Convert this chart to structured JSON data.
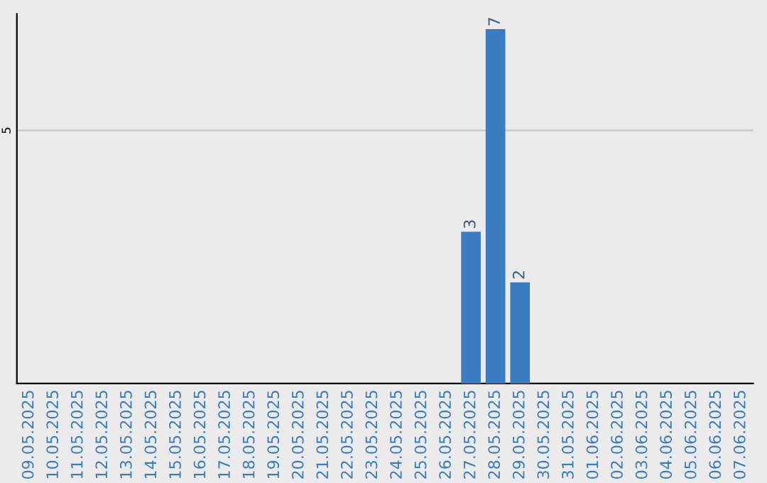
{
  "chart_data": {
    "type": "bar",
    "categories": [
      "09.05.2025",
      "10.05.2025",
      "11.05.2025",
      "12.05.2025",
      "13.05.2025",
      "14.05.2025",
      "15.05.2025",
      "16.05.2025",
      "17.05.2025",
      "18.05.2025",
      "19.05.2025",
      "20.05.2025",
      "21.05.2025",
      "22.05.2025",
      "23.05.2025",
      "24.05.2025",
      "25.05.2025",
      "26.05.2025",
      "27.05.2025",
      "28.05.2025",
      "29.05.2025",
      "30.05.2025",
      "31.05.2025",
      "01.06.2025",
      "02.06.2025",
      "03.06.2025",
      "04.06.2025",
      "05.06.2025",
      "06.06.2025",
      "07.06.2025"
    ],
    "values": [
      null,
      null,
      null,
      null,
      null,
      null,
      null,
      null,
      null,
      null,
      null,
      null,
      null,
      null,
      null,
      null,
      null,
      null,
      3,
      7,
      2,
      null,
      null,
      null,
      null,
      null,
      null,
      null,
      null,
      null
    ],
    "value_labels": [
      null,
      null,
      null,
      null,
      null,
      null,
      null,
      null,
      null,
      null,
      null,
      null,
      null,
      null,
      null,
      null,
      null,
      null,
      "3",
      "7",
      "2",
      null,
      null,
      null,
      null,
      null,
      null,
      null,
      null,
      null
    ],
    "color": "#3a7cc2",
    "ylim": [
      0,
      7.3
    ],
    "yticks": [
      5
    ],
    "grid": "y"
  }
}
